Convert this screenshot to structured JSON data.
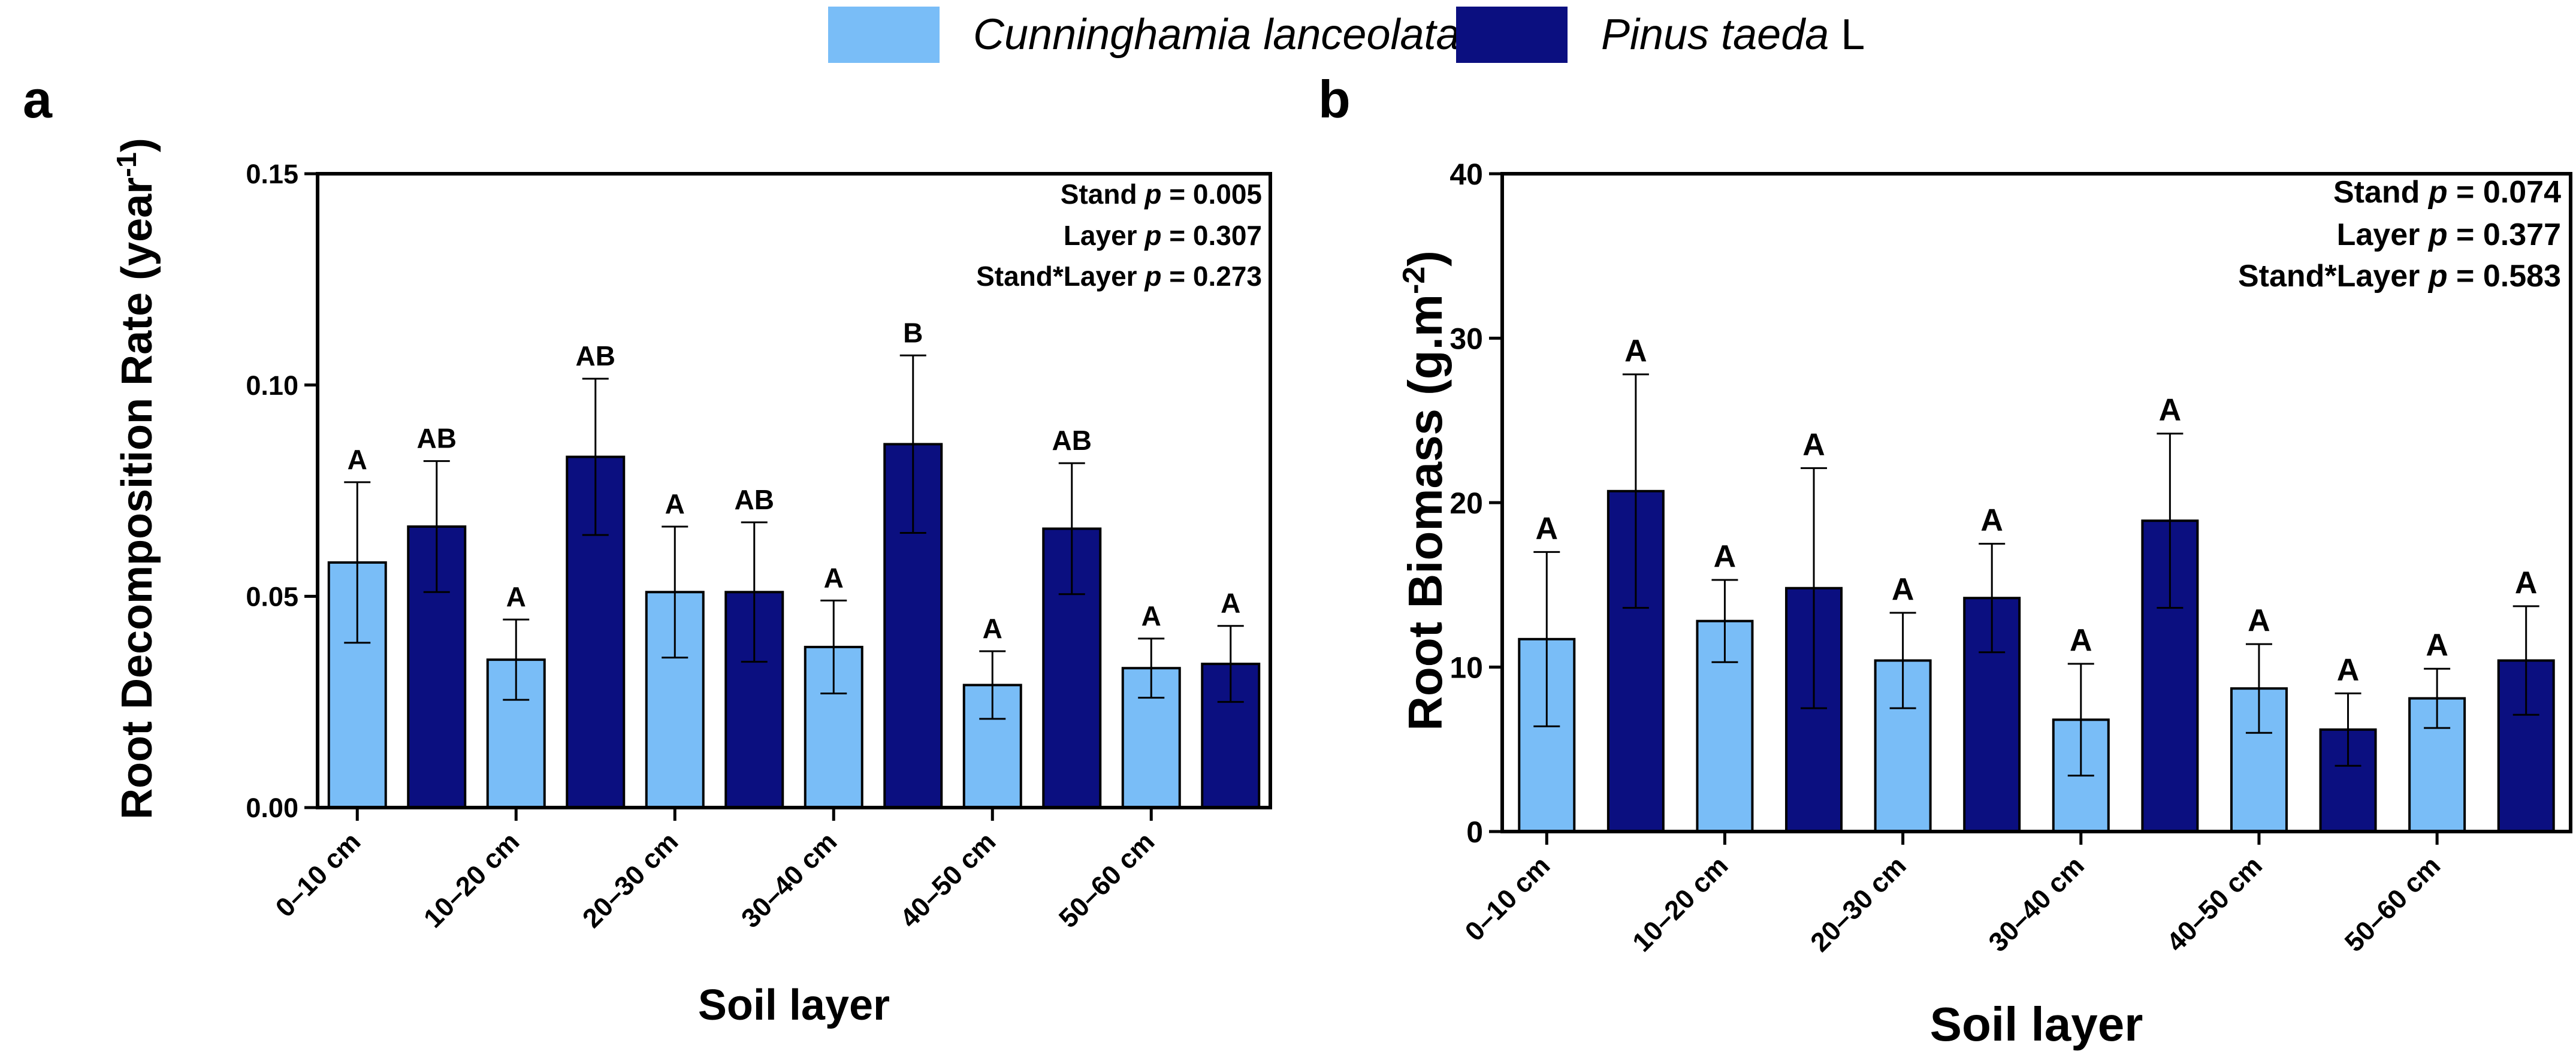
{
  "legend": {
    "entries": [
      {
        "name_italic": "Cunninghamia lanceolata",
        "name_suffix": "",
        "color": "#79BDF7"
      },
      {
        "name_italic": "Pinus taeda",
        "name_suffix": " L",
        "color": "#0B0F80"
      }
    ]
  },
  "chart_data": [
    {
      "type": "bar",
      "panel_label": "a",
      "xlabel": "Soil layer",
      "ylabel": "Root Decomposition Rate (year",
      "ylabel_superscript": "-1",
      "ylabel_suffix": ")",
      "ylim": [
        0,
        0.15
      ],
      "yticks": [
        "0.00",
        "0.05",
        "0.10",
        "0.15"
      ],
      "ytick_values": [
        0,
        0.05,
        0.1,
        0.15
      ],
      "categories": [
        "0–10 cm",
        "10–20 cm",
        "20–30 cm",
        "30–40 cm",
        "40–50 cm",
        "50–60 cm"
      ],
      "series": [
        {
          "name": "Cunninghamia lanceolata",
          "color": "#79BDF7",
          "values": [
            0.058,
            0.035,
            0.051,
            0.038,
            0.029,
            0.033
          ],
          "errors": [
            0.019,
            0.0095,
            0.0155,
            0.011,
            0.008,
            0.007
          ],
          "letters": [
            "A",
            "A",
            "A",
            "A",
            "A",
            "A"
          ]
        },
        {
          "name": "Pinus taeda L",
          "color": "#0B0F80",
          "values": [
            0.0665,
            0.083,
            0.051,
            0.086,
            0.066,
            0.034
          ],
          "errors": [
            0.0155,
            0.0185,
            0.0165,
            0.021,
            0.0155,
            0.009
          ],
          "letters": [
            "AB",
            "AB",
            "AB",
            "B",
            "AB",
            "A"
          ]
        }
      ],
      "stats": [
        {
          "prefix": "Stand ",
          "p": "p",
          "suffix": " = 0.005"
        },
        {
          "prefix": "Layer ",
          "p": "p",
          "suffix": " = 0.307"
        },
        {
          "prefix": "Stand*Layer ",
          "p": "p",
          "suffix": " = 0.273"
        }
      ],
      "grid": false
    },
    {
      "type": "bar",
      "panel_label": "b",
      "xlabel": "Soil layer",
      "ylabel": "Root Biomass (g.m",
      "ylabel_superscript": "-2",
      "ylabel_suffix": ")",
      "ylim": [
        0,
        40
      ],
      "yticks": [
        "0",
        "10",
        "20",
        "30",
        "40"
      ],
      "ytick_values": [
        0,
        10,
        20,
        30,
        40
      ],
      "categories": [
        "0–10 cm",
        "10–20 cm",
        "20–30 cm",
        "30–40 cm",
        "40–50 cm",
        "50–60 cm"
      ],
      "series": [
        {
          "name": "Cunninghamia lanceolata",
          "color": "#79BDF7",
          "values": [
            11.7,
            12.8,
            10.4,
            6.8,
            8.7,
            8.1
          ],
          "errors": [
            5.3,
            2.5,
            2.9,
            3.4,
            2.7,
            1.8
          ],
          "letters": [
            "A",
            "A",
            "A",
            "A",
            "A",
            "A"
          ]
        },
        {
          "name": "Pinus taeda L",
          "color": "#0B0F80",
          "values": [
            20.7,
            14.8,
            14.2,
            18.9,
            6.2,
            10.4
          ],
          "errors": [
            7.1,
            7.3,
            3.3,
            5.3,
            2.2,
            3.3
          ],
          "letters": [
            "A",
            "A",
            "A",
            "A",
            "A",
            "A"
          ]
        }
      ],
      "stats": [
        {
          "prefix": "Stand ",
          "p": "p",
          "suffix": " = 0.074"
        },
        {
          "prefix": "Layer ",
          "p": "p",
          "suffix": " = 0.377"
        },
        {
          "prefix": "Stand*Layer ",
          "p": "p",
          "suffix": " = 0.583"
        }
      ],
      "grid": false
    }
  ]
}
